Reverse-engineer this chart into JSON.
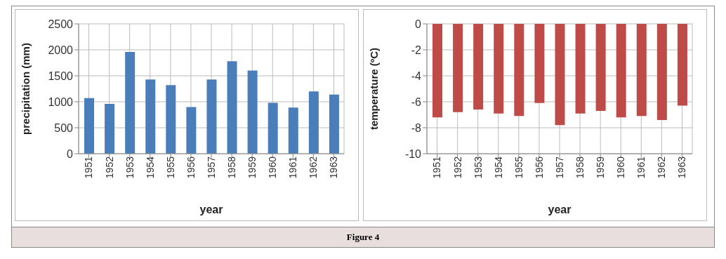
{
  "chart_data": [
    {
      "type": "bar",
      "xlabel": "year",
      "ylabel": "precipitation (mm)",
      "categories": [
        "1951",
        "1952",
        "1953",
        "1954",
        "1955",
        "1956",
        "1957",
        "1958",
        "1959",
        "1960",
        "1961",
        "1962",
        "1963"
      ],
      "values": [
        1070,
        960,
        1960,
        1430,
        1320,
        900,
        1430,
        1780,
        1600,
        980,
        890,
        1200,
        1140
      ],
      "color": "#4a7ebb",
      "ylim": [
        0,
        2500
      ],
      "yticks": [
        0,
        500,
        1000,
        1500,
        2000,
        2500
      ],
      "grid": true,
      "legend": false
    },
    {
      "type": "bar",
      "xlabel": "year",
      "ylabel": "temperature (ºC)",
      "categories": [
        "1951",
        "1952",
        "1953",
        "1954",
        "1955",
        "1956",
        "1957",
        "1958",
        "1959",
        "1960",
        "1961",
        "1962",
        "1963"
      ],
      "values": [
        -7.2,
        -6.8,
        -6.6,
        -6.9,
        -7.1,
        -6.1,
        -7.8,
        -6.9,
        -6.7,
        -7.2,
        -7.1,
        -7.4,
        -6.3
      ],
      "color": "#be4b48",
      "ylim": [
        -10,
        0
      ],
      "yticks": [
        -10,
        -8,
        -6,
        -4,
        -2,
        0
      ],
      "grid": true,
      "legend": false,
      "annotations": [
        "Figure 4"
      ]
    }
  ]
}
